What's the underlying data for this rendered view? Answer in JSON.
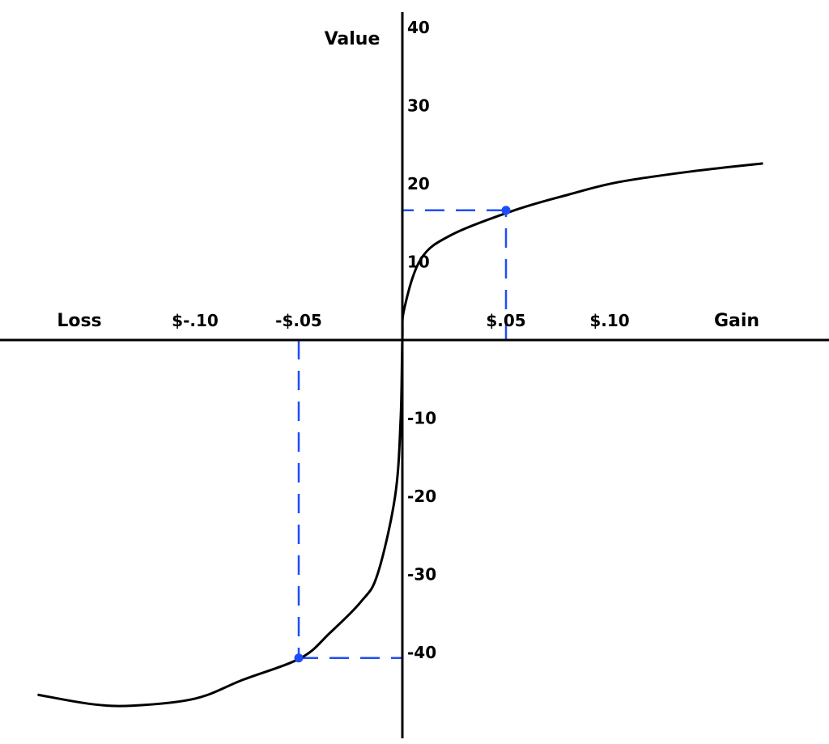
{
  "chart_data": {
    "type": "line",
    "title": "",
    "xlabel_left": "Loss",
    "xlabel_right": "Gain",
    "ylabel": "Value",
    "x_ticks": [
      {
        "value": -0.1,
        "label": "$-.10"
      },
      {
        "value": -0.05,
        "label": "-$.05"
      },
      {
        "value": 0.05,
        "label": "$.05"
      },
      {
        "value": 0.1,
        "label": "$.10"
      }
    ],
    "y_ticks": [
      {
        "value": 40,
        "label": "40"
      },
      {
        "value": 30,
        "label": "30"
      },
      {
        "value": 20,
        "label": "20"
      },
      {
        "value": 10,
        "label": "10"
      },
      {
        "value": -10,
        "label": "-10"
      },
      {
        "value": -20,
        "label": "-20"
      },
      {
        "value": -30,
        "label": "-30"
      },
      {
        "value": -40,
        "label": "-40"
      }
    ],
    "xlim": [
      -0.19,
      0.2
    ],
    "ylim": [
      -51,
      42
    ],
    "grid": false,
    "series": [
      {
        "color": "#000000",
        "x": [
          -0.176,
          -0.15,
          -0.13,
          -0.1,
          -0.077,
          -0.049,
          -0.035,
          -0.02,
          -0.012,
          -0.0035,
          -0.0008,
          0,
          0.001,
          0.009,
          0.024,
          0.054,
          0.08,
          0.104,
          0.14,
          0.174
        ],
        "y": [
          -45.4,
          -46.6,
          -46.8,
          -45.9,
          -43.5,
          -40.7,
          -37.5,
          -33.5,
          -30,
          -20,
          -10,
          0,
          4.1,
          10.4,
          13.5,
          16.6,
          18.6,
          20.2,
          21.6,
          22.6
        ]
      }
    ],
    "highlight_points": [
      {
        "x": 0.05,
        "y": 16.6,
        "color": "#1f4ef5"
      },
      {
        "x": -0.05,
        "y": -40.7,
        "color": "#1f4ef5"
      }
    ]
  }
}
